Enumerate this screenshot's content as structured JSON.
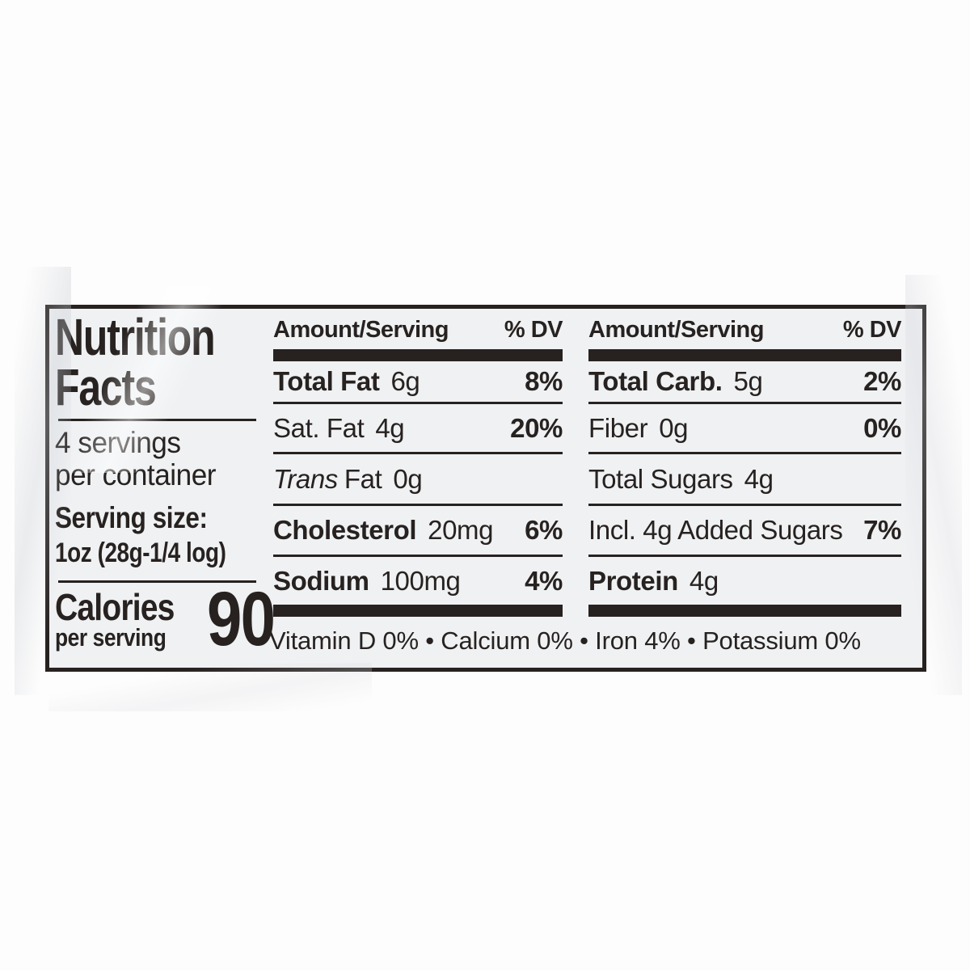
{
  "colors": {
    "ink": "#272220",
    "paper": "#eff1f3",
    "page_bg": "#fdfdfd"
  },
  "label": {
    "title_line1": "Nutrition",
    "title_line2": "Facts",
    "servings_line1": "4 servings",
    "servings_line2": "per container",
    "serving_size_label": "Serving size:",
    "serving_size_value": "1oz (28g-1/4 log)",
    "calories_label": "Calories",
    "calories_sub": "per serving",
    "calories_value": "90",
    "columns": [
      {
        "header_amount": "Amount/Serving",
        "header_dv": "% DV",
        "rows": [
          {
            "name": "Total Fat",
            "amount": "6g",
            "dv": "8%",
            "bold": true,
            "italic_prefix": ""
          },
          {
            "name": "Sat. Fat",
            "amount": "4g",
            "dv": "20%",
            "bold": false,
            "italic_prefix": ""
          },
          {
            "name": "Fat",
            "amount": "0g",
            "dv": "",
            "bold": false,
            "italic_prefix": "Trans"
          },
          {
            "name": "Cholesterol",
            "amount": "20mg",
            "dv": "6%",
            "bold": true,
            "italic_prefix": ""
          },
          {
            "name": "Sodium",
            "amount": "100mg",
            "dv": "4%",
            "bold": true,
            "italic_prefix": ""
          }
        ]
      },
      {
        "header_amount": "Amount/Serving",
        "header_dv": "% DV",
        "rows": [
          {
            "name": "Total Carb.",
            "amount": "5g",
            "dv": "2%",
            "bold": true,
            "italic_prefix": ""
          },
          {
            "name": "Fiber",
            "amount": "0g",
            "dv": "0%",
            "bold": false,
            "italic_prefix": ""
          },
          {
            "name": "Total Sugars",
            "amount": "4g",
            "dv": "",
            "bold": false,
            "italic_prefix": ""
          },
          {
            "name": "Incl. 4g Added Sugars",
            "amount": "",
            "dv": "7%",
            "bold": false,
            "italic_prefix": ""
          },
          {
            "name": "Protein",
            "amount": "4g",
            "dv": "",
            "bold": true,
            "italic_prefix": ""
          }
        ]
      }
    ],
    "vitamins": "Vitamin D 0% • Calcium 0% • Iron 4% • Potassium 0%"
  }
}
